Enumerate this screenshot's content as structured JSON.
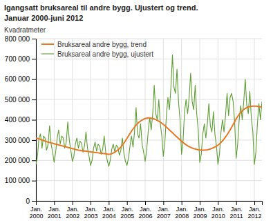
{
  "chart_data": {
    "type": "line",
    "title": "Igangsatt bruksareal til andre bygg. Ujustert og trend.",
    "subtitle": "Januar 2000-juni 2012",
    "y_label": "Kvadratmeter",
    "categories": [
      "Jan.\n2000",
      null,
      null,
      null,
      null,
      null,
      null,
      null,
      null,
      null,
      null,
      null,
      "Jan.\n2001",
      null,
      null,
      null,
      null,
      null,
      null,
      null,
      null,
      null,
      null,
      null,
      "Jan.\n2002",
      null,
      null,
      null,
      null,
      null,
      null,
      null,
      null,
      null,
      null,
      null,
      "Jan.\n2003",
      null,
      null,
      null,
      null,
      null,
      null,
      null,
      null,
      null,
      null,
      null,
      "Jan.\n2004",
      null,
      null,
      null,
      null,
      null,
      null,
      null,
      null,
      null,
      null,
      null,
      "Jan.\n2005",
      null,
      null,
      null,
      null,
      null,
      null,
      null,
      null,
      null,
      null,
      null,
      "Jan.\n2006",
      null,
      null,
      null,
      null,
      null,
      null,
      null,
      null,
      null,
      null,
      null,
      "Jan.\n2007",
      null,
      null,
      null,
      null,
      null,
      null,
      null,
      null,
      null,
      null,
      null,
      "Jan.\n2008",
      null,
      null,
      null,
      null,
      null,
      null,
      null,
      null,
      null,
      null,
      null,
      "Jan.\n2009",
      null,
      null,
      null,
      null,
      null,
      null,
      null,
      null,
      null,
      null,
      null,
      "Jan.\n2010",
      null,
      null,
      null,
      null,
      null,
      null,
      null,
      null,
      null,
      null,
      null,
      "Jan.\n2011",
      null,
      null,
      null,
      null,
      null,
      null,
      null,
      null,
      null,
      null,
      null,
      "Jan.\n2012",
      null,
      null,
      null,
      null,
      null
    ],
    "series": [
      {
        "name": "Bruksareal andre bygg, ujustert",
        "color": "#5C9E31",
        "values": [
          180000,
          220000,
          310000,
          330000,
          260000,
          320000,
          310000,
          250000,
          280000,
          370000,
          280000,
          240000,
          190000,
          240000,
          310000,
          350000,
          280000,
          320000,
          310000,
          260000,
          290000,
          390000,
          300000,
          250000,
          195000,
          220000,
          280000,
          310000,
          260000,
          295000,
          285000,
          240000,
          270000,
          340000,
          260000,
          220000,
          175000,
          200000,
          260000,
          290000,
          245000,
          280000,
          270000,
          230000,
          255000,
          320000,
          240000,
          200000,
          170000,
          200000,
          255000,
          280000,
          240000,
          275000,
          265000,
          225000,
          250000,
          310000,
          235000,
          195000,
          175000,
          210000,
          270000,
          320000,
          265000,
          340000,
          460000,
          330000,
          310000,
          380000,
          280000,
          240000,
          195000,
          250000,
          340000,
          410000,
          350000,
          430000,
          570000,
          430000,
          400000,
          500000,
          380000,
          320000,
          220000,
          290000,
          420000,
          510000,
          450000,
          560000,
          720000,
          560000,
          530000,
          650000,
          490000,
          400000,
          230000,
          300000,
          440000,
          500000,
          430000,
          510000,
          630000,
          490000,
          450000,
          570000,
          430000,
          350000,
          190000,
          230000,
          330000,
          380000,
          310000,
          380000,
          480000,
          370000,
          340000,
          440000,
          330000,
          270000,
          180000,
          230000,
          340000,
          400000,
          340000,
          420000,
          530000,
          420000,
          510000,
          530000,
          490000,
          390000,
          210000,
          280000,
          400000,
          470000,
          400000,
          490000,
          600000,
          470000,
          430000,
          540000,
          410000,
          340000,
          180000,
          240000,
          380000,
          480000,
          400000,
          490000
        ]
      },
      {
        "name": "Bruksareal andre bygg, trend",
        "color": "#E87722",
        "values": [
          310000,
          308000,
          306000,
          304000,
          301000,
          298000,
          295000,
          292000,
          290000,
          288000,
          286000,
          284000,
          282000,
          280000,
          278000,
          276000,
          274000,
          272000,
          270000,
          268000,
          266000,
          264000,
          262000,
          260000,
          258000,
          256000,
          254000,
          252000,
          250000,
          249000,
          248000,
          247000,
          246000,
          245000,
          244000,
          243000,
          242000,
          241000,
          240000,
          239000,
          238000,
          237000,
          236000,
          235000,
          234000,
          233000,
          232000,
          231000,
          230000,
          231000,
          233000,
          236000,
          240000,
          245000,
          251000,
          258000,
          266000,
          275000,
          285000,
          296000,
          308000,
          320000,
          332000,
          344000,
          354000,
          364000,
          373000,
          381000,
          388000,
          394000,
          399000,
          403000,
          406000,
          408000,
          409000,
          409000,
          408000,
          406000,
          404000,
          401000,
          397000,
          393000,
          388000,
          383000,
          377000,
          371000,
          364000,
          357000,
          350000,
          343000,
          336000,
          329000,
          322000,
          315000,
          308000,
          301000,
          294000,
          288000,
          282000,
          277000,
          272000,
          268000,
          264000,
          261000,
          258000,
          256000,
          254000,
          252000,
          251000,
          250000,
          250000,
          250000,
          251000,
          252000,
          254000,
          256000,
          259000,
          262000,
          266000,
          270000,
          275000,
          281000,
          288000,
          296000,
          305000,
          315000,
          326000,
          338000,
          350000,
          363000,
          376000,
          390000,
          404000,
          416000,
          427000,
          436000,
          444000,
          451000,
          456000,
          460000,
          463000,
          465000,
          466000,
          467000,
          467000,
          467000,
          466000,
          465000,
          464000,
          462000
        ]
      }
    ],
    "ylim": [
      0,
      800000
    ],
    "yticks": [
      0,
      {
        "value": 100000,
        "label": "100 000"
      },
      {
        "value": 200000,
        "label": "200 000"
      },
      {
        "value": 300000,
        "label": "300 000"
      },
      {
        "value": 400000,
        "label": "400 000"
      },
      {
        "value": 500000,
        "label": "500 000"
      },
      {
        "value": 600000,
        "label": "600 000"
      },
      {
        "value": 700000,
        "label": "700 000"
      },
      {
        "value": 800000,
        "label": "800 000"
      }
    ],
    "grid": true,
    "legend": "upper left"
  }
}
